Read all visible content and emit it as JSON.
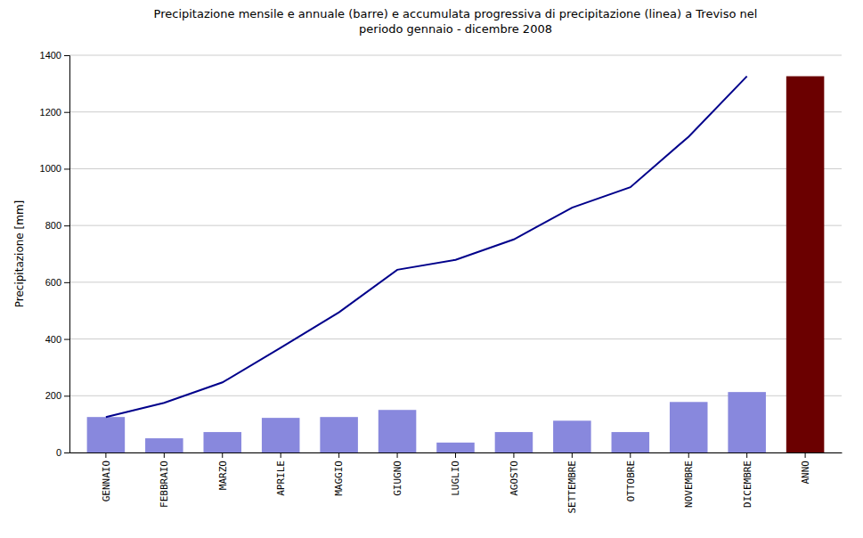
{
  "chart_data": {
    "type": "bar",
    "title": "Precipitazione mensile e annuale (barre) e accumulata progressiva di precipitazione (linea) a Treviso nel\nperiodo gennaio - dicembre 2008",
    "ylabel": "Precipitazione [mm]",
    "categories": [
      "GENNAIO",
      "FEBBRAIO",
      "MARZO",
      "APRILE",
      "MAGGIO",
      "GIUGNO",
      "LUGLIO",
      "AGOSTO",
      "SETTEMBRE",
      "OTTOBRE",
      "NOVEMBRE",
      "DICEMBRE",
      "ANNO"
    ],
    "series": [
      {
        "type": "bar",
        "colors": [
          "#8888dd",
          "#8888dd",
          "#8888dd",
          "#8888dd",
          "#8888dd",
          "#8888dd",
          "#8888dd",
          "#8888dd",
          "#8888dd",
          "#8888dd",
          "#8888dd",
          "#8888dd",
          "#6B0000"
        ],
        "values": [
          125,
          50,
          72,
          122,
          125,
          150,
          35,
          72,
          112,
          72,
          178,
          213,
          1326
        ]
      },
      {
        "type": "line",
        "color": "#00008B",
        "values": [
          125,
          175,
          247,
          369,
          494,
          644,
          679,
          751,
          863,
          935,
          1113,
          1326,
          null
        ]
      }
    ],
    "ylim": [
      0,
      1400
    ],
    "yticks": [
      0,
      200,
      400,
      600,
      800,
      1000,
      1200,
      1400
    ],
    "grid": true
  }
}
